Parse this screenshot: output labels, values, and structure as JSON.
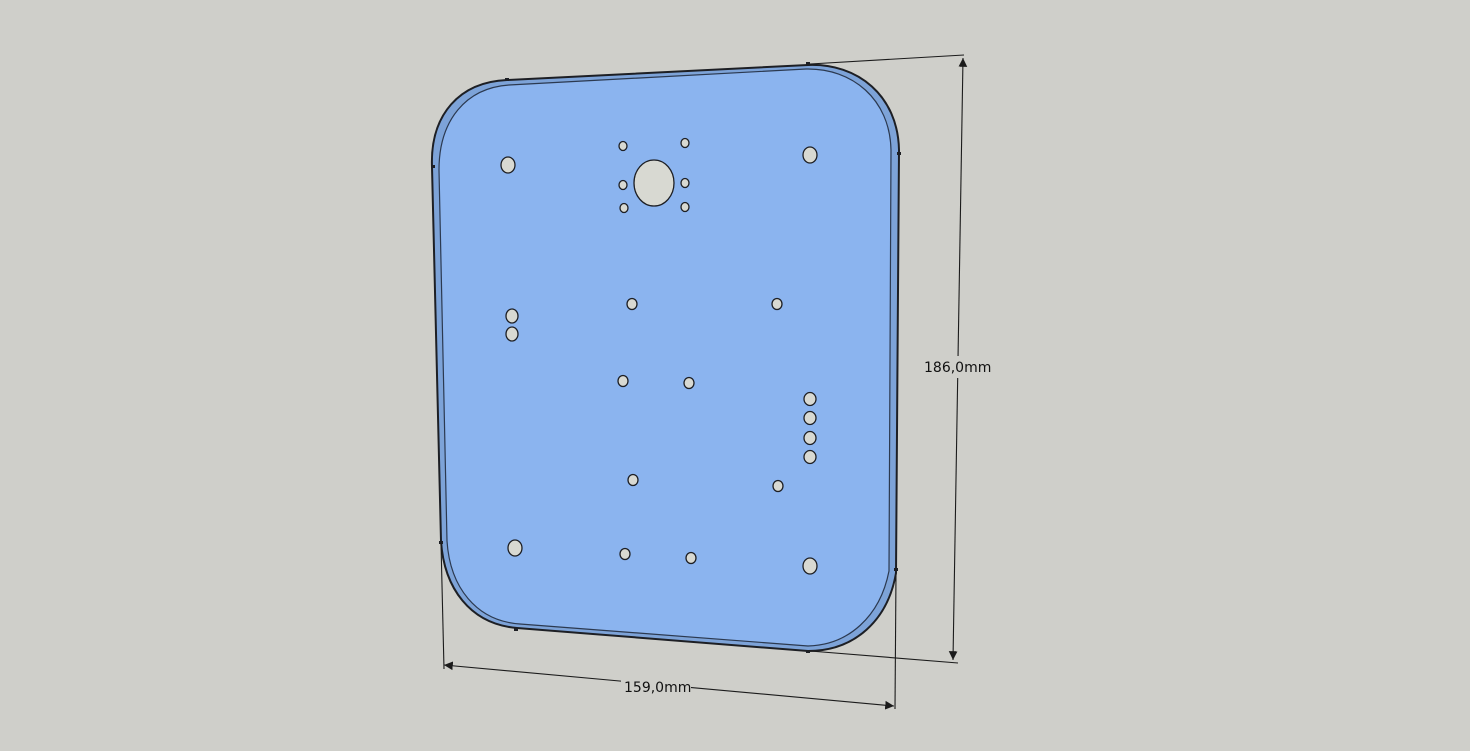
{
  "dimensions": {
    "height_label": "186,0mm",
    "width_label": "159,0mm"
  },
  "colors": {
    "background": "#cfcfca",
    "plate_fill": "#8bb4ef",
    "plate_side": "#7da3d8",
    "edge": "#1d1f24",
    "hole_fill": "#d8d9d2",
    "dimension_line": "#1b1b1b"
  }
}
